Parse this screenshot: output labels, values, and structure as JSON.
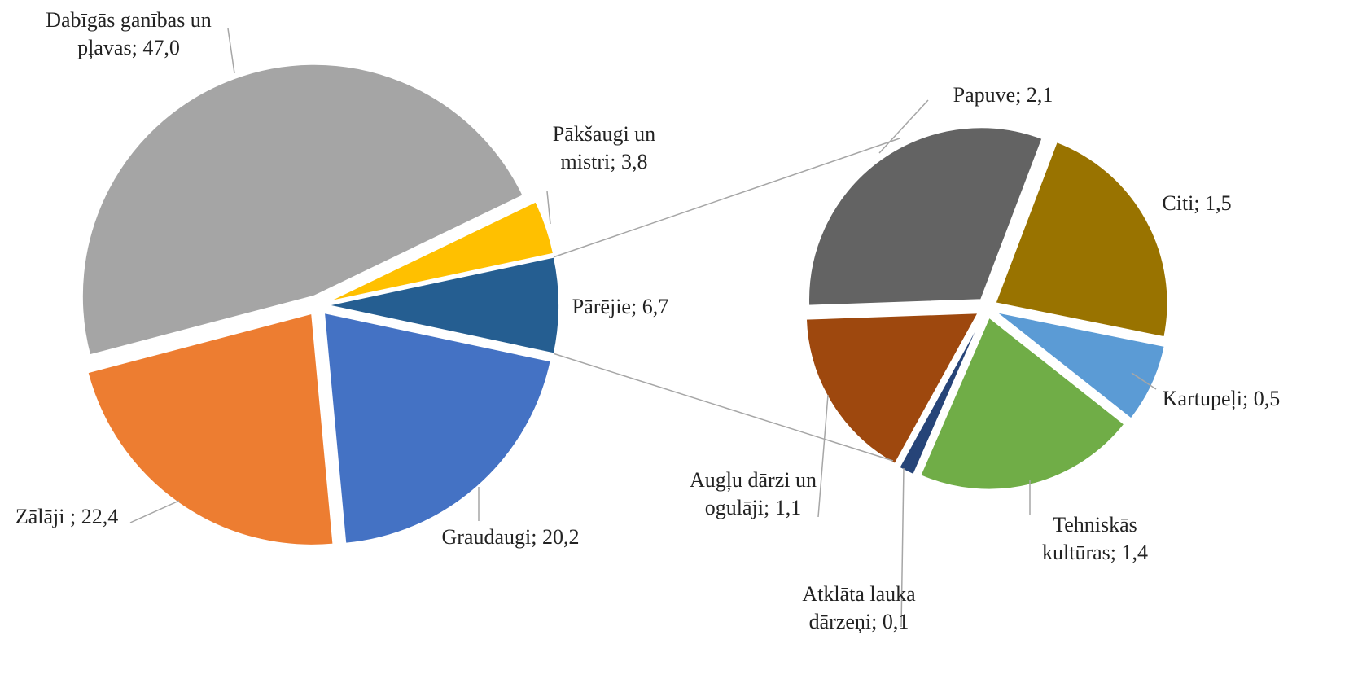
{
  "chart_data": [
    {
      "type": "pie",
      "label_separator": "; ",
      "categories": [
        "Dabīgās ganības un pļavas",
        "Pākšaugi un mistri",
        "Pārējie",
        "Graudaugi",
        "Zālāji "
      ],
      "values": [
        47.0,
        3.8,
        6.7,
        20.2,
        22.4
      ],
      "value_labels": [
        "47,0",
        "3,8",
        "6,7",
        "20,2",
        "22,4"
      ],
      "colors": [
        "#a5a5a5",
        "#ffc000",
        "#255e91",
        "#4472c4",
        "#ed7d31"
      ]
    },
    {
      "type": "pie",
      "label_separator": "; ",
      "categories": [
        "Papuve",
        "Citi",
        "Kartupeļi",
        "Tehniskās kultūras",
        "Atklāta lauka dārzeņi",
        "Augļu dārzi un ogulāji"
      ],
      "values": [
        2.1,
        1.5,
        0.5,
        1.4,
        0.1,
        1.1
      ],
      "value_labels": [
        "2,1",
        "1,5",
        "0,5",
        "1,4",
        "0,1",
        "1,1"
      ],
      "colors": [
        "#636363",
        "#997300",
        "#5b9bd5",
        "#70ad47",
        "#264478",
        "#9e480e"
      ]
    }
  ]
}
